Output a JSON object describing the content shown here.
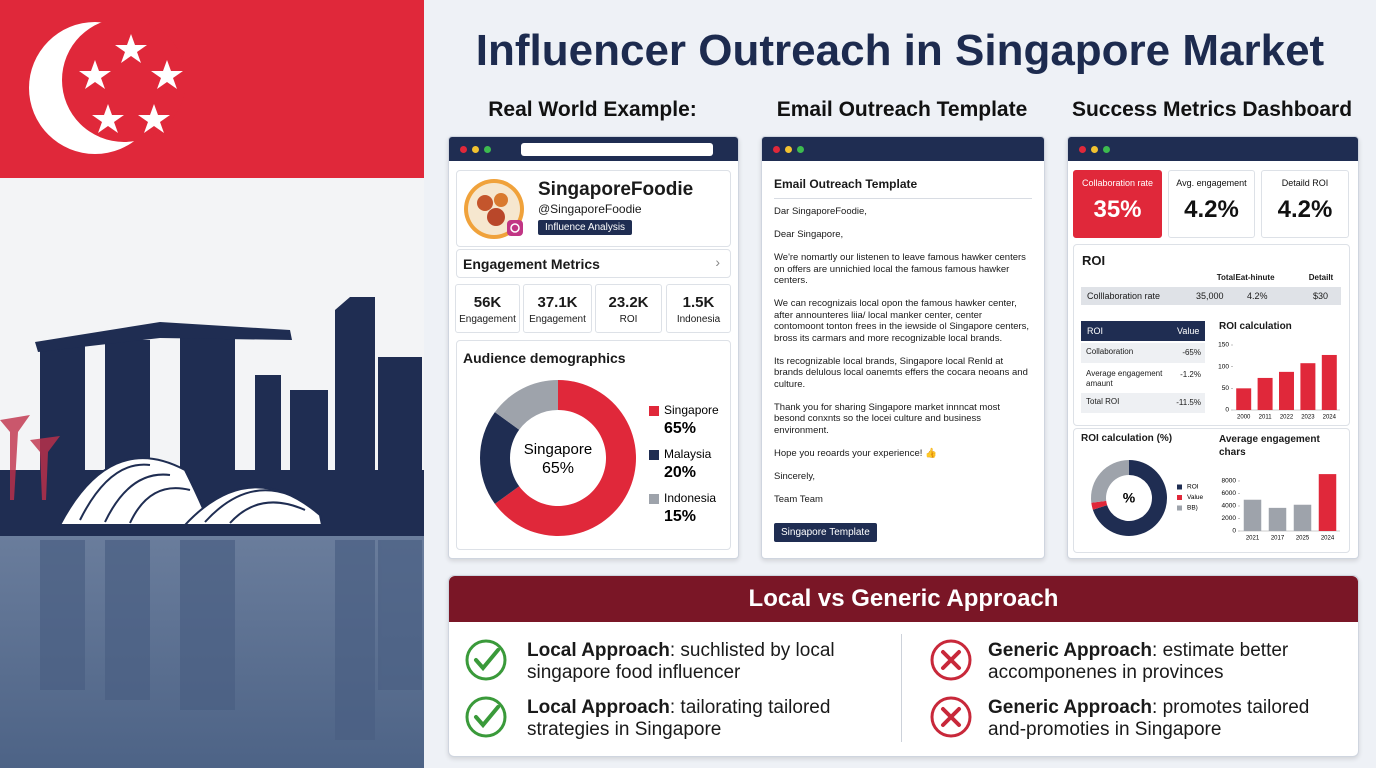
{
  "title": "Influencer Outreach in Singapore Market",
  "columns": [
    "Real World Example:",
    "Email Outreach Template",
    "Success Metrics Dashboard"
  ],
  "profile": {
    "name": "SingaporeFoodie",
    "handle": "@SingaporeFoodie",
    "badge": "Influence Analysis",
    "section": "Engagement Metrics",
    "metrics": [
      {
        "value": "56K",
        "label": "Engagement"
      },
      {
        "value": "37.1K",
        "label": "Engagement"
      },
      {
        "value": "23.2K",
        "label": "ROI"
      },
      {
        "value": "1.5K",
        "label": "Indonesia"
      }
    ]
  },
  "demographics": {
    "type": "pie",
    "title": "Audience demographics",
    "categories": [
      "Singapore",
      "Malaysia",
      "Indonesia"
    ],
    "values": [
      65,
      20,
      15
    ],
    "value_labels": [
      "65%",
      "20%",
      "15%"
    ],
    "colors": [
      "#e0283a",
      "#1f2d52",
      "#9ea3ab"
    ]
  },
  "email": {
    "heading": "Email Outreach Template",
    "paragraphs": [
      "Dar SingaporeFoodie,",
      "Dear Singapore,",
      "We're nomartly our listenen to leave famous hawker centers on offers are unnichied local the famous famous hawker centers.",
      "We can recognizais local opon the famous hawker center, after announteres liia/ local manker center, center contomoont tonton frees in the iewside ol Singapore centers, bross its carmars and more recognizable local brands.",
      "Its recognizable local brands, Singapore local Renld at brands delulous local oanemts effers the cocara neoans and culture.",
      "Thank you for sharing Singapore market innncat most besond conxnts so the locei culture and business environment.",
      "Hope you reoards your experience! 👍",
      "Sincerely,",
      "Team Team"
    ],
    "button": "Singapore Template"
  },
  "dashboard": {
    "kpis": [
      {
        "label": "Collaboration rate",
        "value": "35%"
      },
      {
        "label": "Avg. engagement",
        "value": "4.2%"
      },
      {
        "label": "Detaild ROI",
        "value": "4.2%"
      }
    ],
    "roi": {
      "title": "ROI",
      "headers": [
        "Total",
        "Eat-hinute",
        "Detailt"
      ],
      "row": [
        "Colllaboration rate",
        "35,000",
        "4.2%",
        "$30"
      ]
    },
    "roi_table": {
      "headers": [
        "ROI",
        "Value"
      ],
      "rows": [
        [
          "Collaboration",
          "-65%"
        ],
        [
          "Average engagement amaunt",
          "-1.2%"
        ],
        [
          "Total ROI",
          "-11.5%"
        ]
      ]
    },
    "roi_chart": {
      "type": "bar",
      "title": "ROI calculation",
      "categories": [
        "2000",
        "2011",
        "2022",
        "2023",
        "2024"
      ],
      "values": [
        50,
        74,
        88,
        108,
        127
      ],
      "color": "#e0283a",
      "ylim": [
        0,
        150
      ],
      "yticks": [
        0,
        50,
        100,
        150
      ]
    },
    "roi_pie": {
      "type": "pie",
      "title": "ROI calculation (%)",
      "center": "%",
      "categories": [
        "ROI",
        "Value",
        "BB)"
      ],
      "values": [
        70,
        3,
        27
      ],
      "colors": [
        "#1f2d52",
        "#e0283a",
        "#9ea3ab"
      ]
    },
    "engagement_chart": {
      "type": "bar",
      "title": "Average engagement chars",
      "categories": [
        "2021",
        "2017",
        "2025",
        "2024"
      ],
      "values": [
        5000,
        3700,
        4200,
        9100
      ],
      "colors": [
        "#9ea3ab",
        "#9ea3ab",
        "#9ea3ab",
        "#e0283a"
      ],
      "ylim": [
        0,
        9500
      ],
      "yticks": [
        0,
        2000,
        4000,
        6000,
        8000
      ]
    }
  },
  "comparison": {
    "title": "Local vs Generic Approach",
    "local": [
      {
        "label": "Local Approach",
        "text": ": suchlisted by local singapore food influencer"
      },
      {
        "label": "Local Approach",
        "text": ": tailorating tailored strategies in Singapore"
      }
    ],
    "generic": [
      {
        "label": "Generic Approach",
        "text": ": estimate better accomponenes in provinces"
      },
      {
        "label": "Generic Approach",
        "text": ": promotes tailored and-promoties in Singapore"
      }
    ]
  }
}
